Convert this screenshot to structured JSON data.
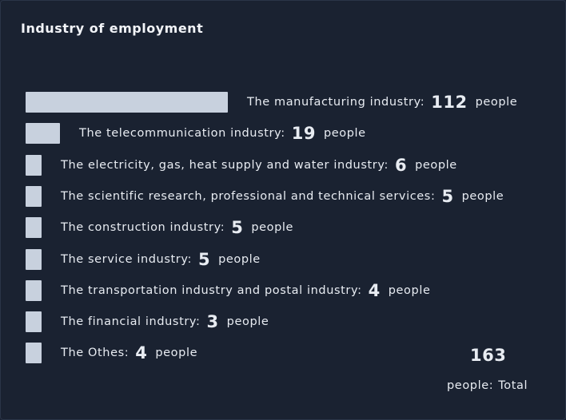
{
  "title": "Industry of employment",
  "chart_data": {
    "type": "bar",
    "orientation": "horizontal",
    "unit": "people",
    "categories": [
      "The manufacturing industry:",
      "The telecommunication industry:",
      "The electricity, gas, heat supply and water industry:",
      "The scientific research, professional and technical services:",
      "The construction industry:",
      "The service industry:",
      "The transportation industry and postal industry:",
      "The financial industry:",
      "The Othes:"
    ],
    "values": [
      112,
      19,
      6,
      5,
      5,
      5,
      4,
      3,
      4
    ],
    "bar_color": "#c8d1de"
  },
  "total": {
    "value": "163",
    "label_prefix": "people:",
    "label_suffix": "Total"
  }
}
